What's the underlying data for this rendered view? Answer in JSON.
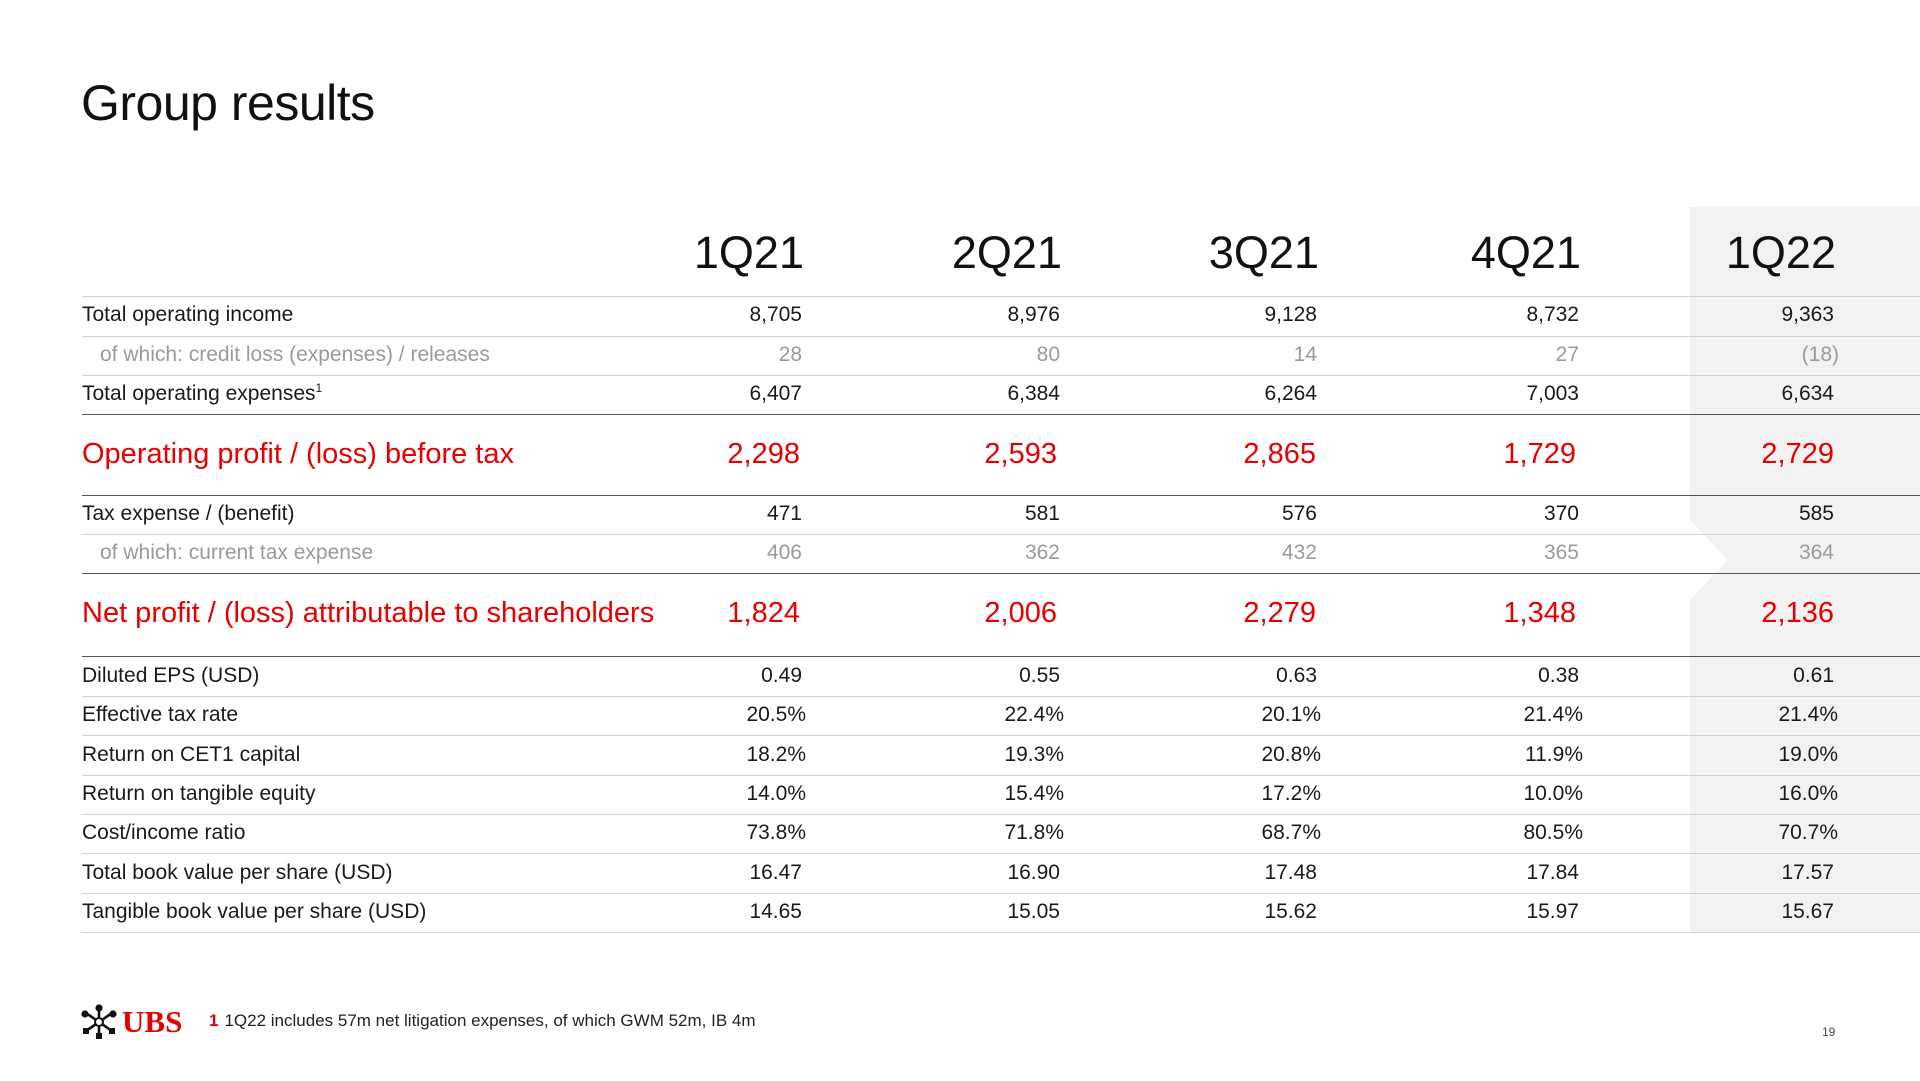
{
  "title": "Group results",
  "columns": [
    "1Q21",
    "2Q21",
    "3Q21",
    "4Q21",
    "1Q22"
  ],
  "rows": [
    {
      "label": "Total operating income",
      "values": [
        "8,705",
        "8,976",
        "9,128",
        "8,732",
        "9,363"
      ]
    },
    {
      "label": "of which: credit loss (expenses) / releases",
      "values": [
        "28",
        "80",
        "14",
        "27",
        "(18)"
      ]
    },
    {
      "label": "Total operating expenses",
      "label_sup": "1",
      "values": [
        "6,407",
        "6,384",
        "6,264",
        "7,003",
        "6,634"
      ]
    },
    {
      "label": "Operating profit / (loss) before tax",
      "values": [
        "2,298",
        "2,593",
        "2,865",
        "1,729",
        "2,729"
      ]
    },
    {
      "label": "Tax expense / (benefit)",
      "values": [
        "471",
        "581",
        "576",
        "370",
        "585"
      ]
    },
    {
      "label": "of which: current tax expense",
      "values": [
        "406",
        "362",
        "432",
        "365",
        "364"
      ]
    },
    {
      "label": "Net profit / (loss) attributable to shareholders",
      "values": [
        "1,824",
        "2,006",
        "2,279",
        "1,348",
        "2,136"
      ]
    },
    {
      "label": "Diluted EPS (USD)",
      "values": [
        "0.49",
        "0.55",
        "0.63",
        "0.38",
        "0.61"
      ]
    },
    {
      "label": "Effective tax rate",
      "values": [
        "20.5%",
        "22.4%",
        "20.1%",
        "21.4%",
        "21.4%"
      ]
    },
    {
      "label": "Return on CET1 capital",
      "values": [
        "18.2%",
        "19.3%",
        "20.8%",
        "11.9%",
        "19.0%"
      ]
    },
    {
      "label": "Return on tangible equity",
      "values": [
        "14.0%",
        "15.4%",
        "17.2%",
        "10.0%",
        "16.0%"
      ]
    },
    {
      "label": "Cost/income ratio",
      "values": [
        "73.8%",
        "71.8%",
        "68.7%",
        "80.5%",
        "70.7%"
      ]
    },
    {
      "label": "Total book value per share (USD)",
      "values": [
        "16.47",
        "16.90",
        "17.48",
        "17.84",
        "17.57"
      ]
    },
    {
      "label": "Tangible book value per share (USD)",
      "values": [
        "14.65",
        "15.05",
        "15.62",
        "15.97",
        "15.67"
      ]
    }
  ],
  "colors": {
    "accent": "#e60000",
    "muted": "#9a9a9a",
    "highlight": "#f2f2f2"
  },
  "logo": {
    "text": "UBS",
    "icon": "ubs-keys-icon"
  },
  "footnote": {
    "number": "1",
    "text": "1Q22 includes 57m net litigation expenses, of which GWM 52m, IB 4m"
  },
  "page_number": "19"
}
